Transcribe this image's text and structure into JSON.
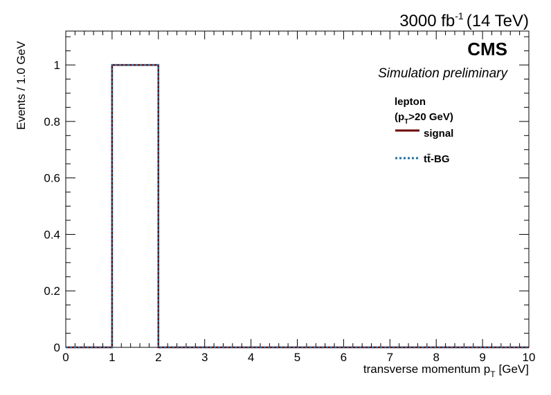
{
  "chart_data": {
    "type": "histogram",
    "lumi_label": "3000 fb",
    "lumi_exponent": "-1",
    "energy_label": "(14 TeV)",
    "experiment": "CMS",
    "subtitle": "Simulation preliminary",
    "xlabel": "transverse momentum p",
    "xlabel_sub": "T",
    "xlabel_unit": "[GeV]",
    "ylabel": "Events / 1.0 GeV",
    "xlim": [
      0,
      10
    ],
    "ylim": [
      0,
      1.12
    ],
    "xticks": [
      "0",
      "1",
      "2",
      "3",
      "4",
      "5",
      "6",
      "7",
      "8",
      "9",
      "10"
    ],
    "yticks": [
      "0",
      "0.2",
      "0.4",
      "0.6",
      "0.8",
      "1"
    ],
    "legend": {
      "header_line1": "lepton",
      "header_line2_pre": "(p",
      "header_line2_sub": "T",
      "header_line2_post": ">20 GeV)",
      "position": "top-right"
    },
    "bin_edges": [
      0,
      1,
      2,
      3,
      4,
      5,
      6,
      7,
      8,
      9,
      10
    ],
    "series": [
      {
        "name": "signal",
        "style": "solid",
        "color": "#6b0000",
        "values": [
          0,
          1,
          0,
          0,
          0,
          0,
          0,
          0,
          0,
          0
        ]
      },
      {
        "name": "tt̄-BG",
        "style": "dotted",
        "color": "#1f6fa0",
        "values": [
          0,
          1,
          0,
          0,
          0,
          0,
          0,
          0,
          0,
          0
        ]
      }
    ]
  }
}
